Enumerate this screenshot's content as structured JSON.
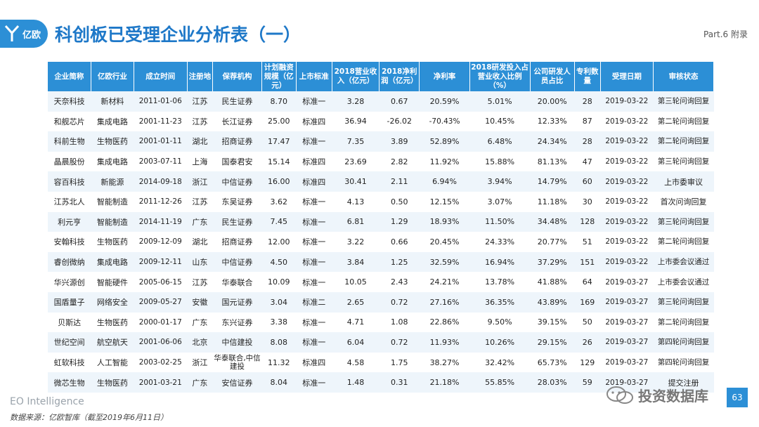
{
  "header": {
    "logo_text": "亿欧",
    "title": "科创板已受理企业分析表（一）",
    "part": "Part.6 附录"
  },
  "table": {
    "columns": [
      "企业简称",
      "亿欧行业",
      "成立时间",
      "注册地",
      "保荐机构",
      "计划融资规模（亿元）",
      "上市标准",
      "2018营业收入（亿元）",
      "2018净利润（亿元）",
      "净利率",
      "2018研发投入占营业收入比例（%）",
      "公司研发人员占比",
      "专利数量",
      "受理日期",
      "审核状态"
    ],
    "rows": [
      [
        "天奈科技",
        "新材料",
        "2011-01-06",
        "江苏",
        "民生证券",
        "8.70",
        "标准一",
        "3.28",
        "0.67",
        "20.59%",
        "5.01%",
        "20.00%",
        "28",
        "2019-03-22",
        "第三轮问询回复"
      ],
      [
        "和舰芯片",
        "集成电路",
        "2001-11-23",
        "江苏",
        "长江证券",
        "25.00",
        "标准四",
        "36.94",
        "-26.02",
        "-70.43%",
        "10.45%",
        "12.33%",
        "87",
        "2019-03-22",
        "第二轮问询回复"
      ],
      [
        "科前生物",
        "生物医药",
        "2001-01-11",
        "湖北",
        "招商证券",
        "17.47",
        "标准一",
        "7.35",
        "3.89",
        "52.89%",
        "6.48%",
        "24.34%",
        "28",
        "2019-03-22",
        "第二轮问询回复"
      ],
      [
        "晶晨股份",
        "集成电路",
        "2003-07-11",
        "上海",
        "国泰君安",
        "15.14",
        "标准四",
        "23.69",
        "2.82",
        "11.92%",
        "15.88%",
        "81.13%",
        "47",
        "2019-03-22",
        "第三轮问询回复"
      ],
      [
        "容百科技",
        "新能源",
        "2014-09-18",
        "浙江",
        "中信证券",
        "16.00",
        "标准四",
        "30.41",
        "2.11",
        "6.94%",
        "3.94%",
        "14.79%",
        "60",
        "2019-03-22",
        "上市委审议"
      ],
      [
        "江苏北人",
        "智能制造",
        "2011-12-26",
        "江苏",
        "东吴证券",
        "3.62",
        "标准一",
        "4.13",
        "0.50",
        "12.15%",
        "3.07%",
        "11.18%",
        "30",
        "2019-03-22",
        "首次问询回复"
      ],
      [
        "利元亨",
        "智能制造",
        "2014-11-19",
        "广东",
        "民生证券",
        "7.45",
        "标准一",
        "6.81",
        "1.29",
        "18.93%",
        "11.50%",
        "34.48%",
        "128",
        "2019-03-22",
        "第三轮问询回复"
      ],
      [
        "安翰科技",
        "生物医药",
        "2009-12-09",
        "湖北",
        "招商证券",
        "12.00",
        "标准一",
        "3.22",
        "0.66",
        "20.45%",
        "24.33%",
        "20.77%",
        "51",
        "2019-03-22",
        "第二轮问询回复"
      ],
      [
        "睿创微纳",
        "集成电路",
        "2009-12-11",
        "山东",
        "中信证券",
        "4.50",
        "标准一",
        "3.84",
        "1.25",
        "32.59%",
        "16.94%",
        "37.29%",
        "151",
        "2019-03-22",
        "上市委会议通过"
      ],
      [
        "华兴源创",
        "智能硬件",
        "2005-06-15",
        "江苏",
        "华泰联合",
        "10.09",
        "标准一",
        "10.05",
        "2.43",
        "24.21%",
        "13.78%",
        "41.88%",
        "64",
        "2019-03-27",
        "上市委会议通过"
      ],
      [
        "国盾量子",
        "网络安全",
        "2009-05-27",
        "安徽",
        "国元证券",
        "3.04",
        "标准二",
        "2.65",
        "0.72",
        "27.16%",
        "36.35%",
        "43.89%",
        "169",
        "2019-03-27",
        "第三轮问询回复"
      ],
      [
        "贝斯达",
        "生物医药",
        "2000-01-17",
        "广东",
        "东兴证券",
        "3.38",
        "标准一",
        "4.71",
        "1.08",
        "22.86%",
        "9.50%",
        "39.15%",
        "50",
        "2019-03-27",
        "第二轮问询回复"
      ],
      [
        "世纪空间",
        "航空航天",
        "2001-06-06",
        "北京",
        "中信建投",
        "8.08",
        "标准一",
        "6.04",
        "0.72",
        "11.93%",
        "10.26%",
        "29.15%",
        "26",
        "2019-03-27",
        "第四轮问询回复"
      ],
      [
        "虹软科技",
        "人工智能",
        "2003-02-25",
        "浙江",
        "华泰联合,中信建投",
        "11.32",
        "标准四",
        "4.58",
        "1.75",
        "38.27%",
        "32.42%",
        "65.73%",
        "129",
        "2019-03-27",
        "第四轮问询回复"
      ],
      [
        "微芯生物",
        "生物医药",
        "2001-03-21",
        "广东",
        "安信证券",
        "8.04",
        "标准一",
        "1.48",
        "0.31",
        "21.18%",
        "55.85%",
        "28.03%",
        "59",
        "2019-03-27",
        "提交注册"
      ]
    ]
  },
  "footer": {
    "brand": "EO Intelligence",
    "source": "数据来源：亿欧智库（截至2019年6月11日）",
    "watermark": "投资数据库",
    "page": "63"
  },
  "colors": {
    "accent": "#2c8fd6",
    "title": "#1e78c8",
    "row_alt": "#eef5fb"
  }
}
